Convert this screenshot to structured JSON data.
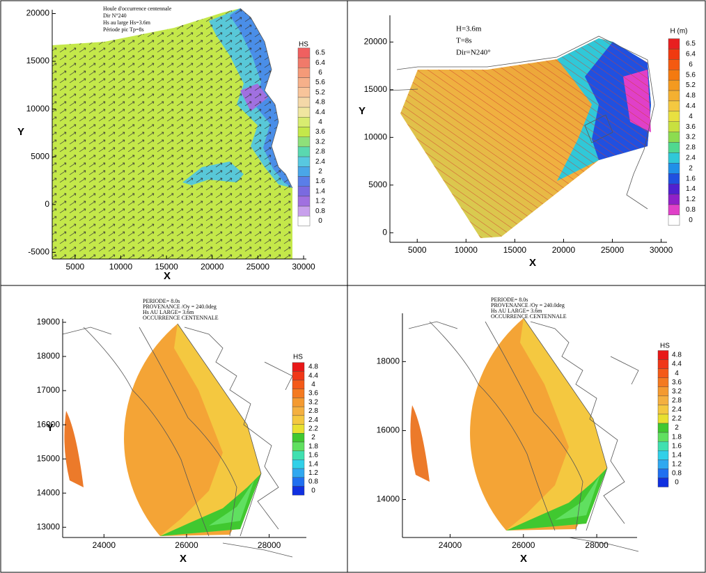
{
  "chart_data": [
    {
      "type": "contour",
      "annotations": [
        "Houle d'occurrence centennale",
        "Dir N°240",
        "Hs au large Hs=3.6m",
        "Période pic Tp=8s"
      ],
      "x_label": "X",
      "y_label": "Y",
      "xlim": [
        2500,
        30300
      ],
      "ylim": [
        -5700,
        20400
      ],
      "xticks": [
        5000,
        10000,
        15000,
        20000,
        25000,
        30000
      ],
      "yticks": [
        -5000,
        0,
        5000,
        10000,
        15000,
        20000
      ],
      "colorbar_title": "HS",
      "levels": [
        6.5,
        6.4,
        6,
        5.6,
        5.2,
        4.8,
        4.4,
        4,
        3.6,
        3.2,
        2.8,
        2.4,
        2,
        1.6,
        1.4,
        1.2,
        0.8,
        0
      ],
      "level_colors": [
        "#f06060",
        "#f07a6a",
        "#f49a78",
        "#f6b08a",
        "#f8c49a",
        "#f4d8a8",
        "#f0e6a0",
        "#d8ec70",
        "#c4e84a",
        "#8ee07a",
        "#5ad8b0",
        "#58c8e0",
        "#4aa6e8",
        "#5a7ee8",
        "#7a6ae0",
        "#a070e0",
        "#c8a0ec",
        "#ffffff"
      ]
    },
    {
      "type": "contour",
      "annotations": [
        "H=3.6m",
        "T=8s",
        "Dir=N240°"
      ],
      "x_label": "X",
      "y_label": "Y",
      "xlim": [
        2200,
        30600
      ],
      "ylim": [
        -1000,
        22800
      ],
      "xticks": [
        5000,
        10000,
        15000,
        20000,
        25000,
        30000
      ],
      "yticks": [
        0,
        5000,
        10000,
        15000,
        20000
      ],
      "colorbar_title": "H (m)",
      "levels": [
        6.5,
        6.4,
        6,
        5.6,
        5.2,
        4.8,
        4.4,
        4,
        3.6,
        3.2,
        2.8,
        2.4,
        2,
        1.6,
        1.4,
        1.2,
        0.8,
        0
      ],
      "level_colors": [
        "#e82020",
        "#f03a10",
        "#f45a10",
        "#f47a10",
        "#f49a20",
        "#f4b030",
        "#f4c840",
        "#e8e040",
        "#c8e040",
        "#8cdc50",
        "#50d890",
        "#30c8d8",
        "#2090e8",
        "#2050e0",
        "#5020d0",
        "#9020c8",
        "#e040c8",
        "#ffffff"
      ]
    },
    {
      "type": "contour",
      "annotations": [
        "PERIODE= 8.0s",
        "PROVENANCE /Oy = 240.0deg",
        "Hs AU LARGE= 3.6m",
        "OCCURRENCE CENTENNALE"
      ],
      "x_label": "X",
      "y_label": "Y",
      "xlim": [
        23000,
        28900
      ],
      "ylim": [
        12700,
        19100
      ],
      "xticks": [
        24000,
        26000,
        28000
      ],
      "yticks": [
        13000,
        14000,
        15000,
        16000,
        17000,
        18000,
        19000
      ],
      "colorbar_title": "HS",
      "levels": [
        4.8,
        4.4,
        4,
        3.6,
        3.2,
        2.8,
        2.4,
        2.2,
        2,
        1.8,
        1.6,
        1.4,
        1.2,
        0.8,
        0
      ],
      "level_colors": [
        "#e81818",
        "#f03818",
        "#f45a18",
        "#f47a20",
        "#f49a30",
        "#f4b040",
        "#f4c840",
        "#e8e030",
        "#40c830",
        "#60e060",
        "#40e0b0",
        "#30d0e8",
        "#30a8f0",
        "#2070f0",
        "#1030e0"
      ]
    },
    {
      "type": "contour",
      "annotations": [
        "PERIODE= 8.0s",
        "PROVENANCE /Oy = 240.0deg",
        "Hs AU LARGE= 3.6m",
        "OCCURRENCE CENTENNALE"
      ],
      "x_label": "X",
      "xlim": [
        22700,
        29100
      ],
      "ylim": [
        12900,
        19400
      ],
      "xticks": [
        24000,
        26000,
        28000
      ],
      "yticks": [
        14000,
        16000,
        18000
      ],
      "colorbar_title": "HS",
      "levels": [
        4.8,
        4.4,
        4,
        3.6,
        3.2,
        2.8,
        2.4,
        2.2,
        2,
        1.8,
        1.6,
        1.4,
        1.2,
        0.8,
        0
      ],
      "level_colors": [
        "#e81818",
        "#f03818",
        "#f45a18",
        "#f47a20",
        "#f49a30",
        "#f4b040",
        "#f4c840",
        "#e8e030",
        "#40c830",
        "#60e060",
        "#40e0b0",
        "#30d0e8",
        "#30a8f0",
        "#2070f0",
        "#1030e0"
      ]
    }
  ]
}
